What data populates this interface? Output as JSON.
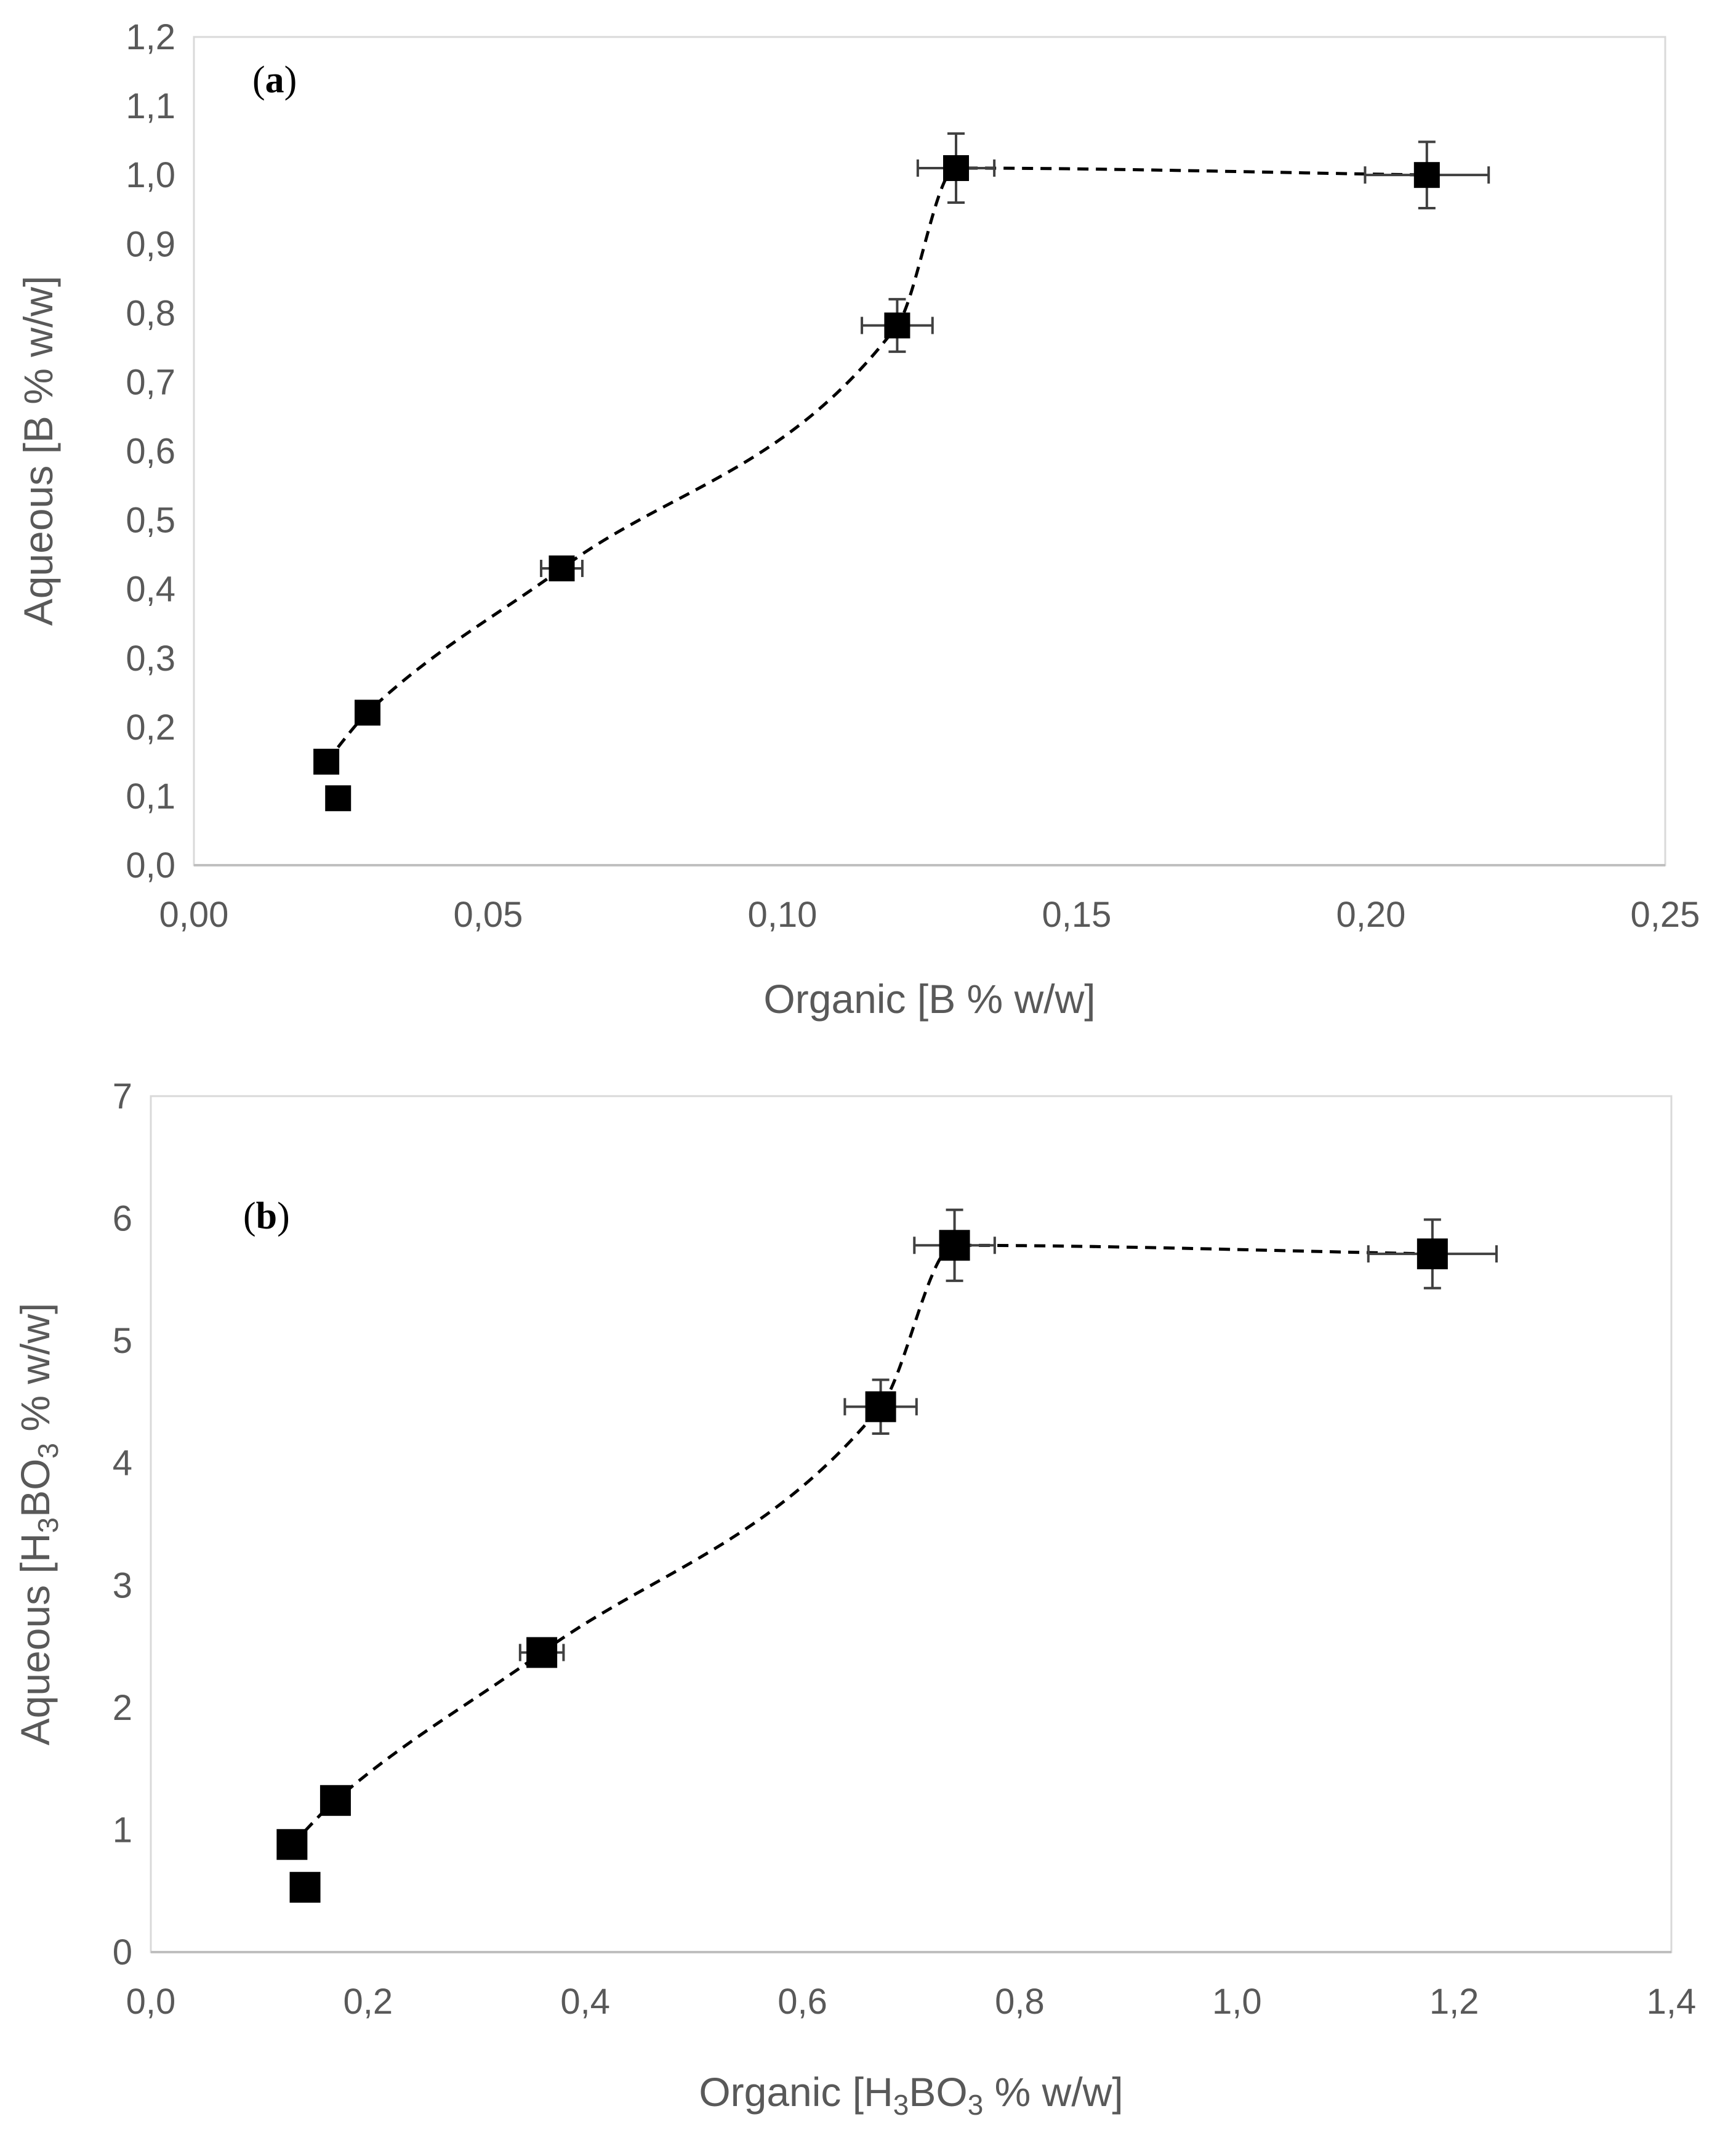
{
  "chart_data": [
    {
      "type": "scatter",
      "panel_label_open": "(",
      "panel_label_letter": "a",
      "panel_label_close": ")",
      "xlabel": "Organic [B % w/w]",
      "ylabel": "Aqueous [B % w/w]",
      "xlim": [
        0,
        0.25
      ],
      "ylim": [
        0,
        1.2
      ],
      "x_ticks": [
        0,
        0.05,
        0.1,
        0.15,
        0.2,
        0.25
      ],
      "x_tick_labels": [
        "0,00",
        "0,05",
        "0,10",
        "0,15",
        "0,20",
        "0,25"
      ],
      "y_ticks": [
        0,
        0.1,
        0.2,
        0.3,
        0.4,
        0.5,
        0.6,
        0.7,
        0.8,
        0.9,
        1.0,
        1.1,
        1.2
      ],
      "y_tick_labels": [
        "0,0",
        "0,1",
        "0,2",
        "0,3",
        "0,4",
        "0,5",
        "0,6",
        "0,7",
        "0,8",
        "0,9",
        "1,0",
        "1,1",
        "1,2"
      ],
      "grid": false,
      "points": [
        {
          "x": 0.0225,
          "y": 0.15,
          "xerr": 0.001,
          "yerr": 0.01
        },
        {
          "x": 0.0245,
          "y": 0.097,
          "xerr": 0.0008,
          "yerr": 0.006
        },
        {
          "x": 0.0295,
          "y": 0.221,
          "xerr": 0.001,
          "yerr": 0.008
        },
        {
          "x": 0.0625,
          "y": 0.43,
          "xerr": 0.0035,
          "yerr": 0.015
        },
        {
          "x": 0.1195,
          "y": 0.782,
          "xerr": 0.006,
          "yerr": 0.038
        },
        {
          "x": 0.1295,
          "y": 1.01,
          "xerr": 0.0065,
          "yerr": 0.05
        },
        {
          "x": 0.2095,
          "y": 1.0,
          "xerr": 0.0105,
          "yerr": 0.048
        }
      ],
      "trend_line": [
        {
          "x": 0.0225,
          "y": 0.15
        },
        {
          "x": 0.0295,
          "y": 0.221
        },
        {
          "x": 0.0625,
          "y": 0.43
        },
        {
          "x": 0.1195,
          "y": 0.782
        },
        {
          "x": 0.1295,
          "y": 1.01
        },
        {
          "x": 0.2095,
          "y": 1.0
        }
      ]
    },
    {
      "type": "scatter",
      "panel_label_open": "(",
      "panel_label_letter": "b",
      "panel_label_close": ")",
      "xlabel_parts": [
        "Organic [H",
        "3",
        "BO",
        "3",
        " % w/w]"
      ],
      "ylabel_parts": [
        "Aqueous [H",
        "3",
        "BO",
        "3",
        " % w/w]"
      ],
      "xlim": [
        0,
        1.4
      ],
      "ylim": [
        0,
        7
      ],
      "x_ticks": [
        0,
        0.2,
        0.4,
        0.6,
        0.8,
        1.0,
        1.2,
        1.4
      ],
      "x_tick_labels": [
        "0,0",
        "0,2",
        "0,4",
        "0,6",
        "0,8",
        "1,0",
        "1,2",
        "1,4"
      ],
      "y_ticks": [
        0,
        1,
        2,
        3,
        4,
        5,
        6,
        7
      ],
      "y_tick_labels": [
        "0",
        "1",
        "2",
        "3",
        "4",
        "5",
        "6",
        "7"
      ],
      "grid": false,
      "points": [
        {
          "x": 0.13,
          "y": 0.88,
          "xerr": 0.007,
          "yerr": 0.06
        },
        {
          "x": 0.142,
          "y": 0.53,
          "xerr": 0.005,
          "yerr": 0.035
        },
        {
          "x": 0.17,
          "y": 1.24,
          "xerr": 0.006,
          "yerr": 0.05
        },
        {
          "x": 0.36,
          "y": 2.45,
          "xerr": 0.02,
          "yerr": 0.09
        },
        {
          "x": 0.672,
          "y": 4.46,
          "xerr": 0.033,
          "yerr": 0.22
        },
        {
          "x": 0.74,
          "y": 5.78,
          "xerr": 0.037,
          "yerr": 0.29
        },
        {
          "x": 1.18,
          "y": 5.71,
          "xerr": 0.059,
          "yerr": 0.28
        }
      ],
      "trend_line": [
        {
          "x": 0.13,
          "y": 0.88
        },
        {
          "x": 0.17,
          "y": 1.24
        },
        {
          "x": 0.36,
          "y": 2.45
        },
        {
          "x": 0.672,
          "y": 4.46
        },
        {
          "x": 0.74,
          "y": 5.78
        },
        {
          "x": 1.18,
          "y": 5.71
        }
      ]
    }
  ]
}
